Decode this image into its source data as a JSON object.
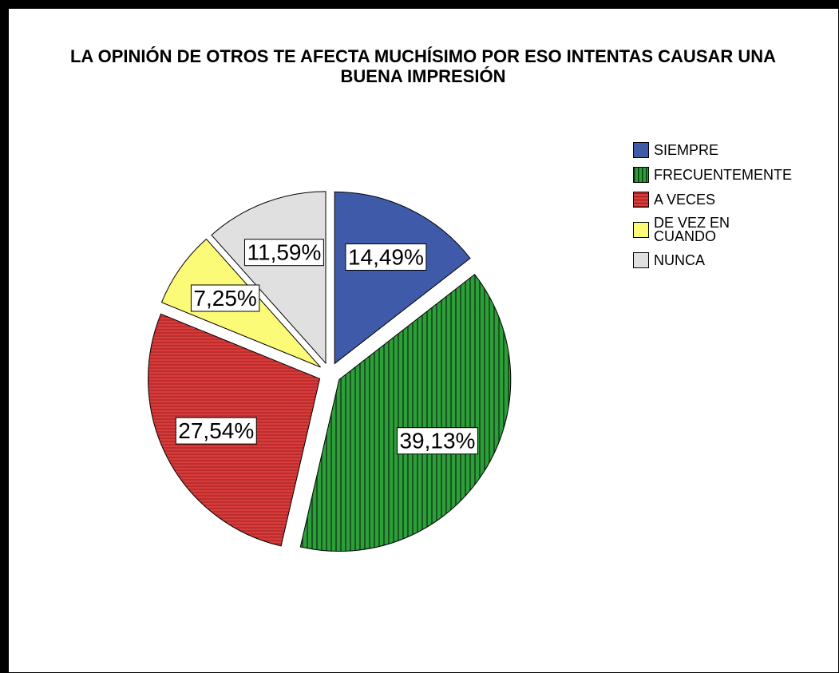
{
  "chart_data": {
    "type": "pie",
    "title": "LA OPINIÓN DE OTROS TE AFECTA MUCHÍSIMO POR ESO INTENTAS CAUSAR UNA BUENA IMPRESIÓN",
    "categories": [
      "SIEMPRE",
      "FRECUENTEMENTE",
      "A VECES",
      "DE VEZ EN CUANDO",
      "NUNCA"
    ],
    "values": [
      14.49,
      39.13,
      27.54,
      7.25,
      11.59
    ],
    "value_labels": [
      "14,49%",
      "39,13%",
      "27,54%",
      "7,25%",
      "11,59%"
    ],
    "colors": [
      "#3f5aa8",
      "#2e9e3a",
      "#d93b3b",
      "#fbfb78",
      "#e0e0e0"
    ],
    "legend": "right"
  }
}
